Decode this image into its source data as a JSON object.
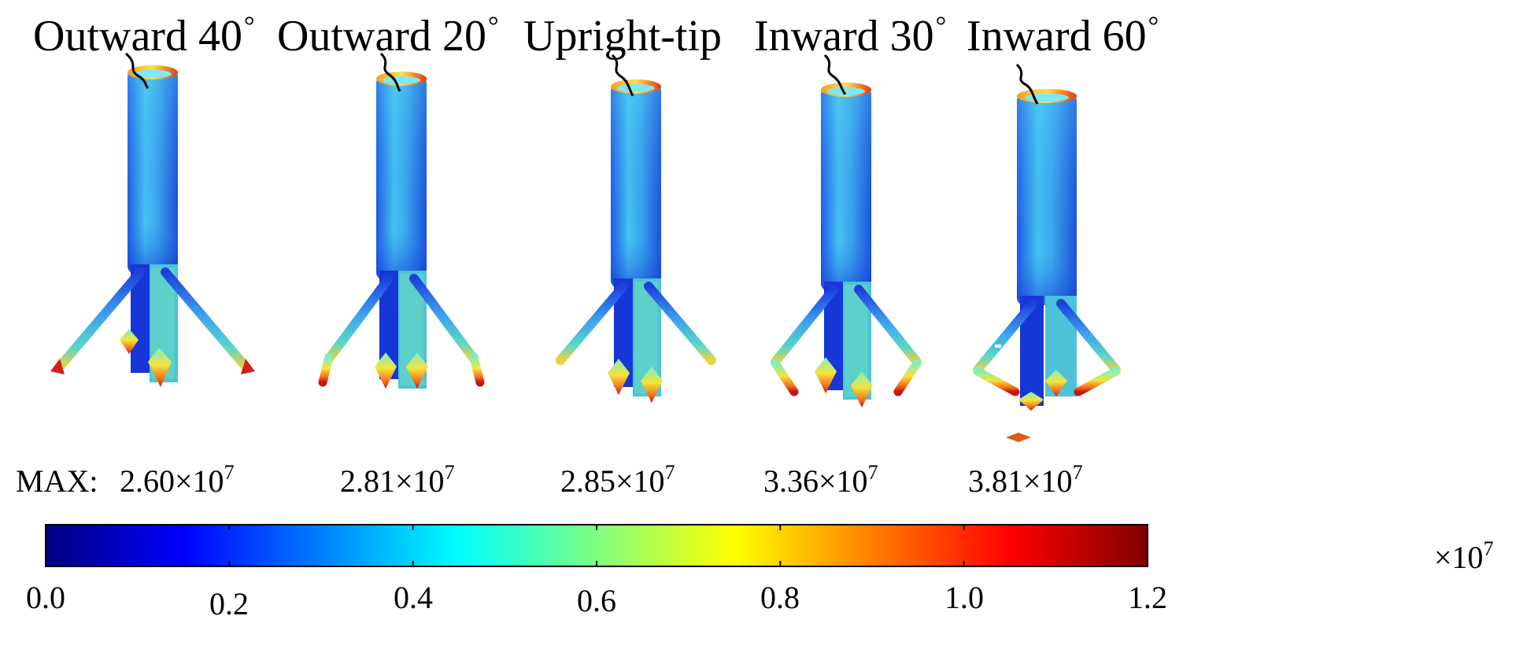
{
  "variants": [
    {
      "name": "Outward 40",
      "degree_symbol": "°",
      "max_mantissa": "2.60",
      "max_exponent": "7"
    },
    {
      "name": "Outward 20",
      "degree_symbol": "°",
      "max_mantissa": "2.81",
      "max_exponent": "7"
    },
    {
      "name": "Upright-tip",
      "degree_symbol": "",
      "max_mantissa": "2.85",
      "max_exponent": "7"
    },
    {
      "name": "Inward 30",
      "degree_symbol": "°",
      "max_mantissa": "3.36",
      "max_exponent": "7"
    },
    {
      "name": "Inward 60",
      "degree_symbol": "°",
      "max_mantissa": "3.81",
      "max_exponent": "7"
    }
  ],
  "max_prefix": "MAX:",
  "times_ten": "×10",
  "colorbar": {
    "min": 0.0,
    "max": 1.2,
    "ticks": [
      "0.0",
      "0.2",
      "0.4",
      "0.6",
      "0.8",
      "1.0",
      "1.2"
    ],
    "unit_prefix": "×10",
    "unit_exponent": "7",
    "colormap": "jet",
    "stops": [
      "#00007f",
      "#0000ff",
      "#007fff",
      "#00ffff",
      "#7fff7f",
      "#ffff00",
      "#ff7f00",
      "#ff0000",
      "#7f0000"
    ]
  }
}
